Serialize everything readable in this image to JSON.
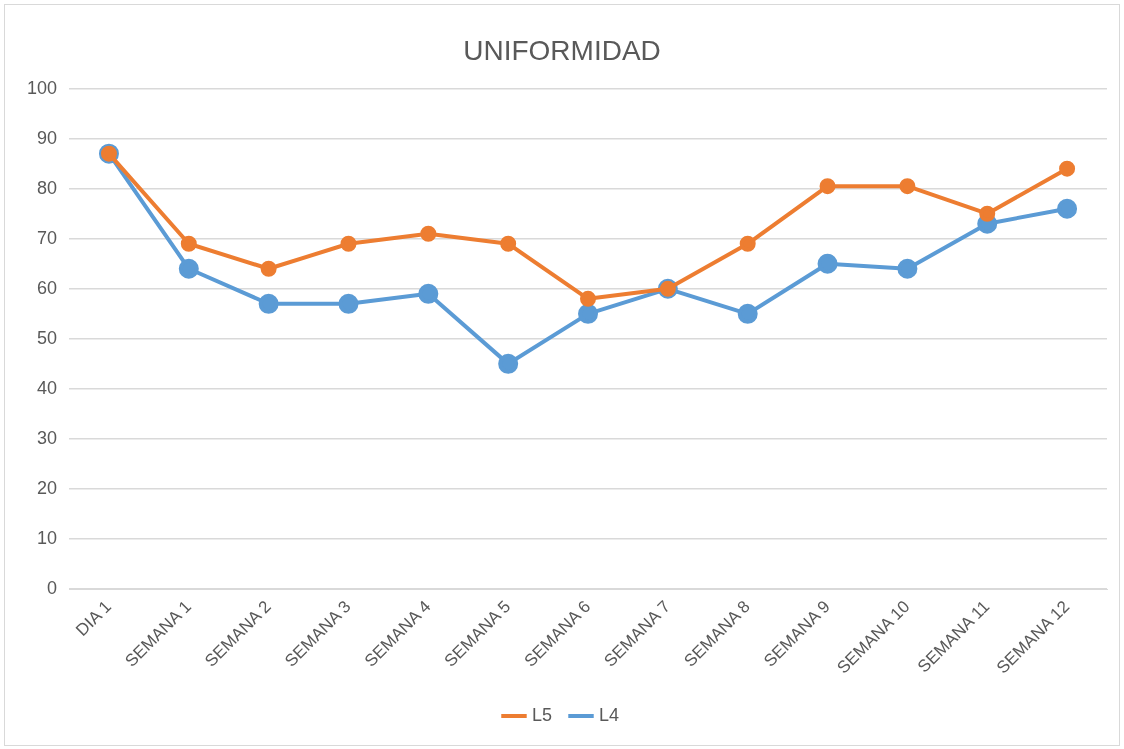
{
  "chart_data": {
    "type": "line",
    "title": "UNIFORMIDAD",
    "categories": [
      "DIA 1",
      "SEMANA 1",
      "SEMANA 2",
      "SEMANA 3",
      "SEMANA 4",
      "SEMANA 5",
      "SEMANA 6",
      "SEMANA 7",
      "SEMANA 8",
      "SEMANA 9",
      "SEMANA 10",
      "SEMANA 11",
      "SEMANA 12"
    ],
    "series": [
      {
        "name": "L4",
        "color": "#5b9bd5",
        "values": [
          87,
          64,
          57,
          57,
          59,
          45,
          55,
          60,
          55,
          65,
          64,
          73,
          76
        ]
      },
      {
        "name": "L5",
        "color": "#ed7d31",
        "values": [
          87,
          69,
          64,
          69,
          71,
          69,
          58,
          60,
          69,
          80.5,
          80.5,
          75,
          84
        ]
      }
    ],
    "ylim": [
      0,
      100
    ],
    "yticks": [
      0,
      10,
      20,
      30,
      40,
      50,
      60,
      70,
      80,
      90,
      100
    ],
    "grid": "y",
    "legend": "bottom",
    "marker": "circle",
    "line_style": "solid"
  }
}
